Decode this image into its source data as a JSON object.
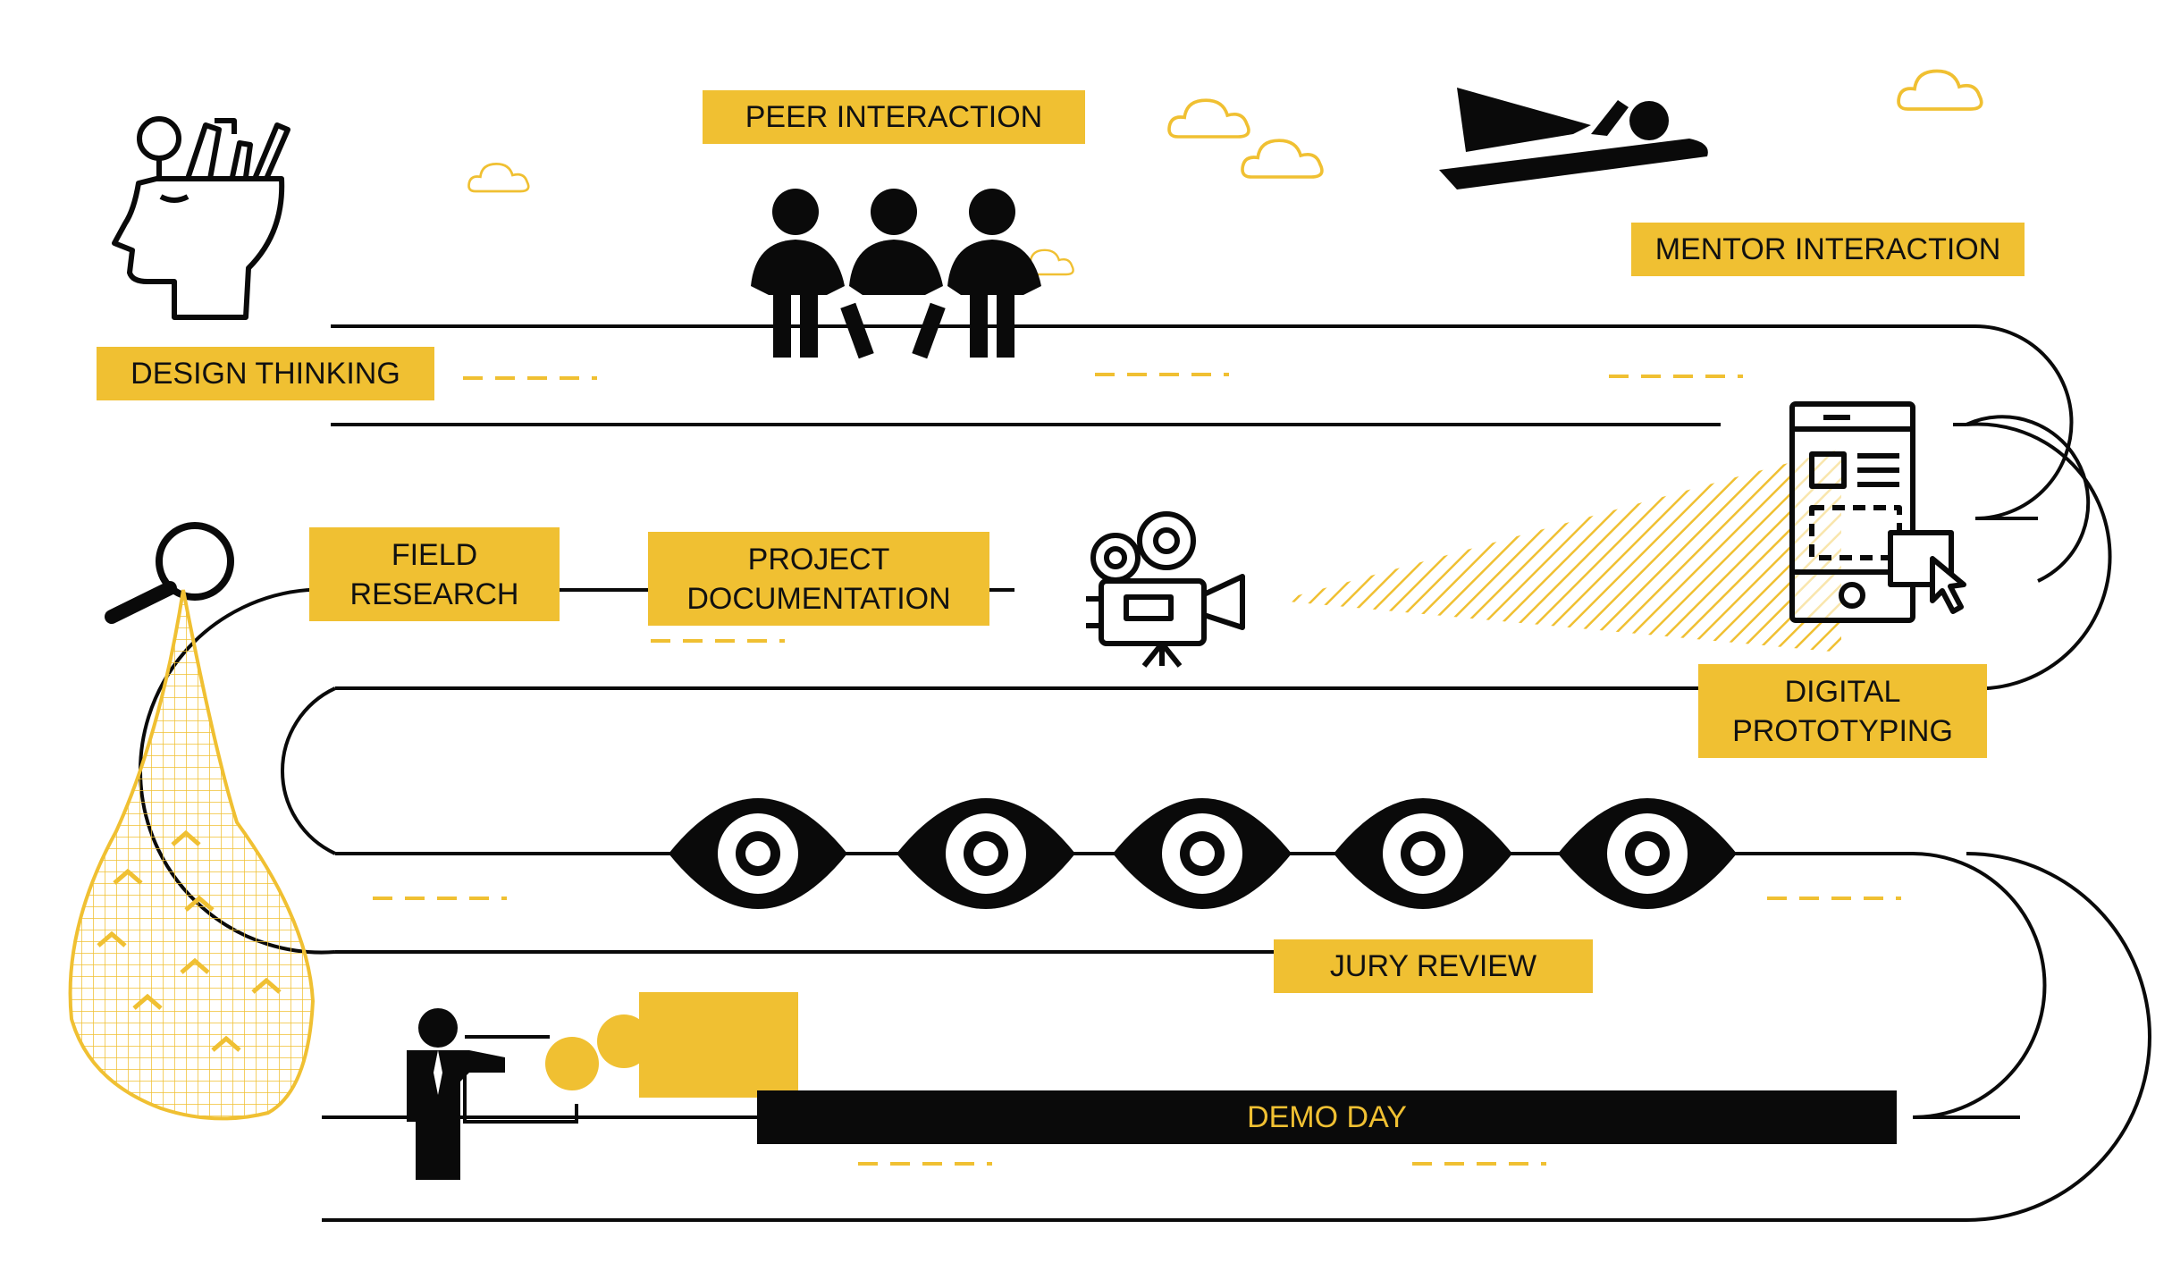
{
  "colors": {
    "accent": "#F0C032",
    "ink": "#0a0a0a",
    "background": "#ffffff"
  },
  "stages": {
    "design_thinking": "DESIGN THINKING",
    "peer_interaction": "PEER INTERACTION",
    "mentor_interaction": "MENTOR INTERACTION",
    "field_research": "FIELD\nRESEARCH",
    "project_documentation": "PROJECT\nDOCUMENTATION",
    "digital_prototyping": "DIGITAL\nPROTOTYPING",
    "jury_review": "JURY REVIEW",
    "demo_day": "DEMO DAY"
  },
  "icons": [
    "head-with-tools-icon",
    "three-people-sitting-icon",
    "person-flying-icon",
    "magnifier-icon",
    "map-icon",
    "movie-camera-icon",
    "mobile-prototype-icon",
    "eye-icon",
    "presenter-icon",
    "cloud-icon"
  ]
}
